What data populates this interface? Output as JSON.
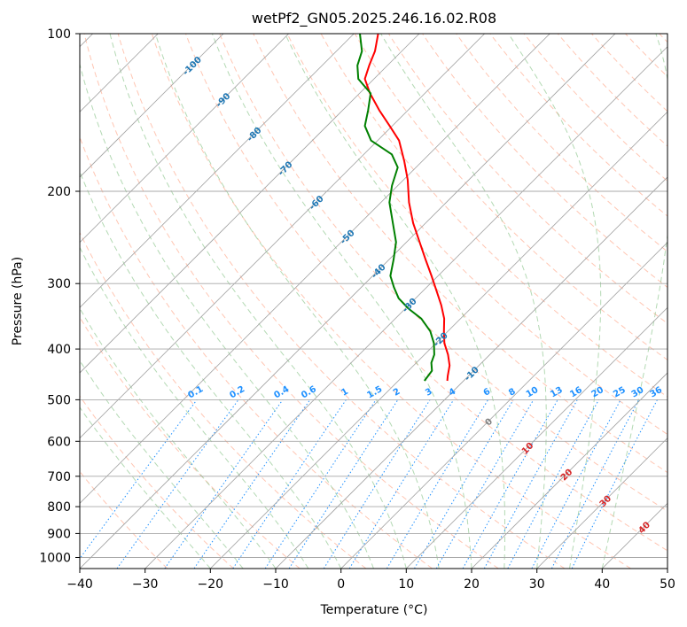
{
  "chart_data": {
    "type": "line",
    "title": "wetPf2_GN05.2025.246.16.02.R08",
    "xlabel": "Temperature (°C)",
    "ylabel": "Pressure (hPa)",
    "xlim": [
      -40,
      50
    ],
    "ylim": [
      1050,
      100
    ],
    "y_scale": "log",
    "grid": true,
    "x_ticks": [
      -40,
      -30,
      -20,
      -10,
      0,
      10,
      20,
      30,
      40,
      50
    ],
    "y_ticks": [
      100,
      200,
      300,
      400,
      500,
      600,
      700,
      800,
      900,
      1000
    ],
    "skew_t": true,
    "colors": {
      "temperature": "#ff0000",
      "dewpoint": "#008000",
      "isotherm": "#a0a0a0",
      "dry_adiabat": "#ffa080",
      "moist_adiabat": "#80c080",
      "mixing_ratio": "#1e90ff",
      "isotherm_label": "#1f77b4",
      "freezing_label": "#808080",
      "warm_label": "#d62728"
    },
    "series": [
      {
        "name": "",
        "role": "temperature",
        "points": [
          {
            "p": 460,
            "t": -12.5
          },
          {
            "p": 450,
            "t": -13.2
          },
          {
            "p": 430,
            "t": -14.5
          },
          {
            "p": 410,
            "t": -16.4
          },
          {
            "p": 390,
            "t": -18.7
          },
          {
            "p": 370,
            "t": -20.6
          },
          {
            "p": 350,
            "t": -22.5
          },
          {
            "p": 330,
            "t": -25.0
          },
          {
            "p": 310,
            "t": -27.9
          },
          {
            "p": 290,
            "t": -31.0
          },
          {
            "p": 270,
            "t": -34.4
          },
          {
            "p": 250,
            "t": -38.0
          },
          {
            "p": 230,
            "t": -41.9
          },
          {
            "p": 210,
            "t": -45.7
          },
          {
            "p": 190,
            "t": -49.4
          },
          {
            "p": 175,
            "t": -52.8
          },
          {
            "p": 160,
            "t": -56.7
          },
          {
            "p": 150,
            "t": -60.4
          },
          {
            "p": 140,
            "t": -64.4
          },
          {
            "p": 130,
            "t": -68.4
          },
          {
            "p": 122,
            "t": -71.4
          },
          {
            "p": 115,
            "t": -72.8
          },
          {
            "p": 108,
            "t": -74.1
          },
          {
            "p": 100,
            "t": -76.3
          }
        ]
      },
      {
        "name": "",
        "role": "dewpoint",
        "points": [
          {
            "p": 460,
            "t": -16.0
          },
          {
            "p": 440,
            "t": -16.4
          },
          {
            "p": 425,
            "t": -17.7
          },
          {
            "p": 410,
            "t": -18.5
          },
          {
            "p": 390,
            "t": -20.3
          },
          {
            "p": 370,
            "t": -22.7
          },
          {
            "p": 350,
            "t": -26.0
          },
          {
            "p": 335,
            "t": -29.5
          },
          {
            "p": 320,
            "t": -32.6
          },
          {
            "p": 305,
            "t": -35.0
          },
          {
            "p": 290,
            "t": -37.3
          },
          {
            "p": 270,
            "t": -39.3
          },
          {
            "p": 250,
            "t": -41.6
          },
          {
            "p": 230,
            "t": -45.0
          },
          {
            "p": 210,
            "t": -48.7
          },
          {
            "p": 195,
            "t": -50.9
          },
          {
            "p": 180,
            "t": -52.8
          },
          {
            "p": 170,
            "t": -55.7
          },
          {
            "p": 160,
            "t": -61.0
          },
          {
            "p": 150,
            "t": -64.2
          },
          {
            "p": 140,
            "t": -66.1
          },
          {
            "p": 130,
            "t": -68.3
          },
          {
            "p": 122,
            "t": -72.4
          },
          {
            "p": 115,
            "t": -74.6
          },
          {
            "p": 108,
            "t": -76.1
          },
          {
            "p": 100,
            "t": -79.1
          }
        ]
      }
    ],
    "isotherm_labels": [
      -100,
      -90,
      -80,
      -70,
      -60,
      -50,
      -40,
      -30,
      -20,
      -10,
      0,
      10,
      20,
      30,
      40
    ],
    "mixing_ratio_labels": [
      "0.1",
      "0.2",
      "0.4",
      "0.6",
      "1",
      "1.5",
      "2",
      "3",
      "4",
      "6",
      "8",
      "10",
      "13",
      "16",
      "20",
      "25",
      "30",
      "36"
    ],
    "mixing_ratio_values": [
      0.1,
      0.2,
      0.4,
      0.6,
      1,
      1.5,
      2,
      3,
      4,
      6,
      8,
      10,
      13,
      16,
      20,
      25,
      30,
      36
    ]
  }
}
